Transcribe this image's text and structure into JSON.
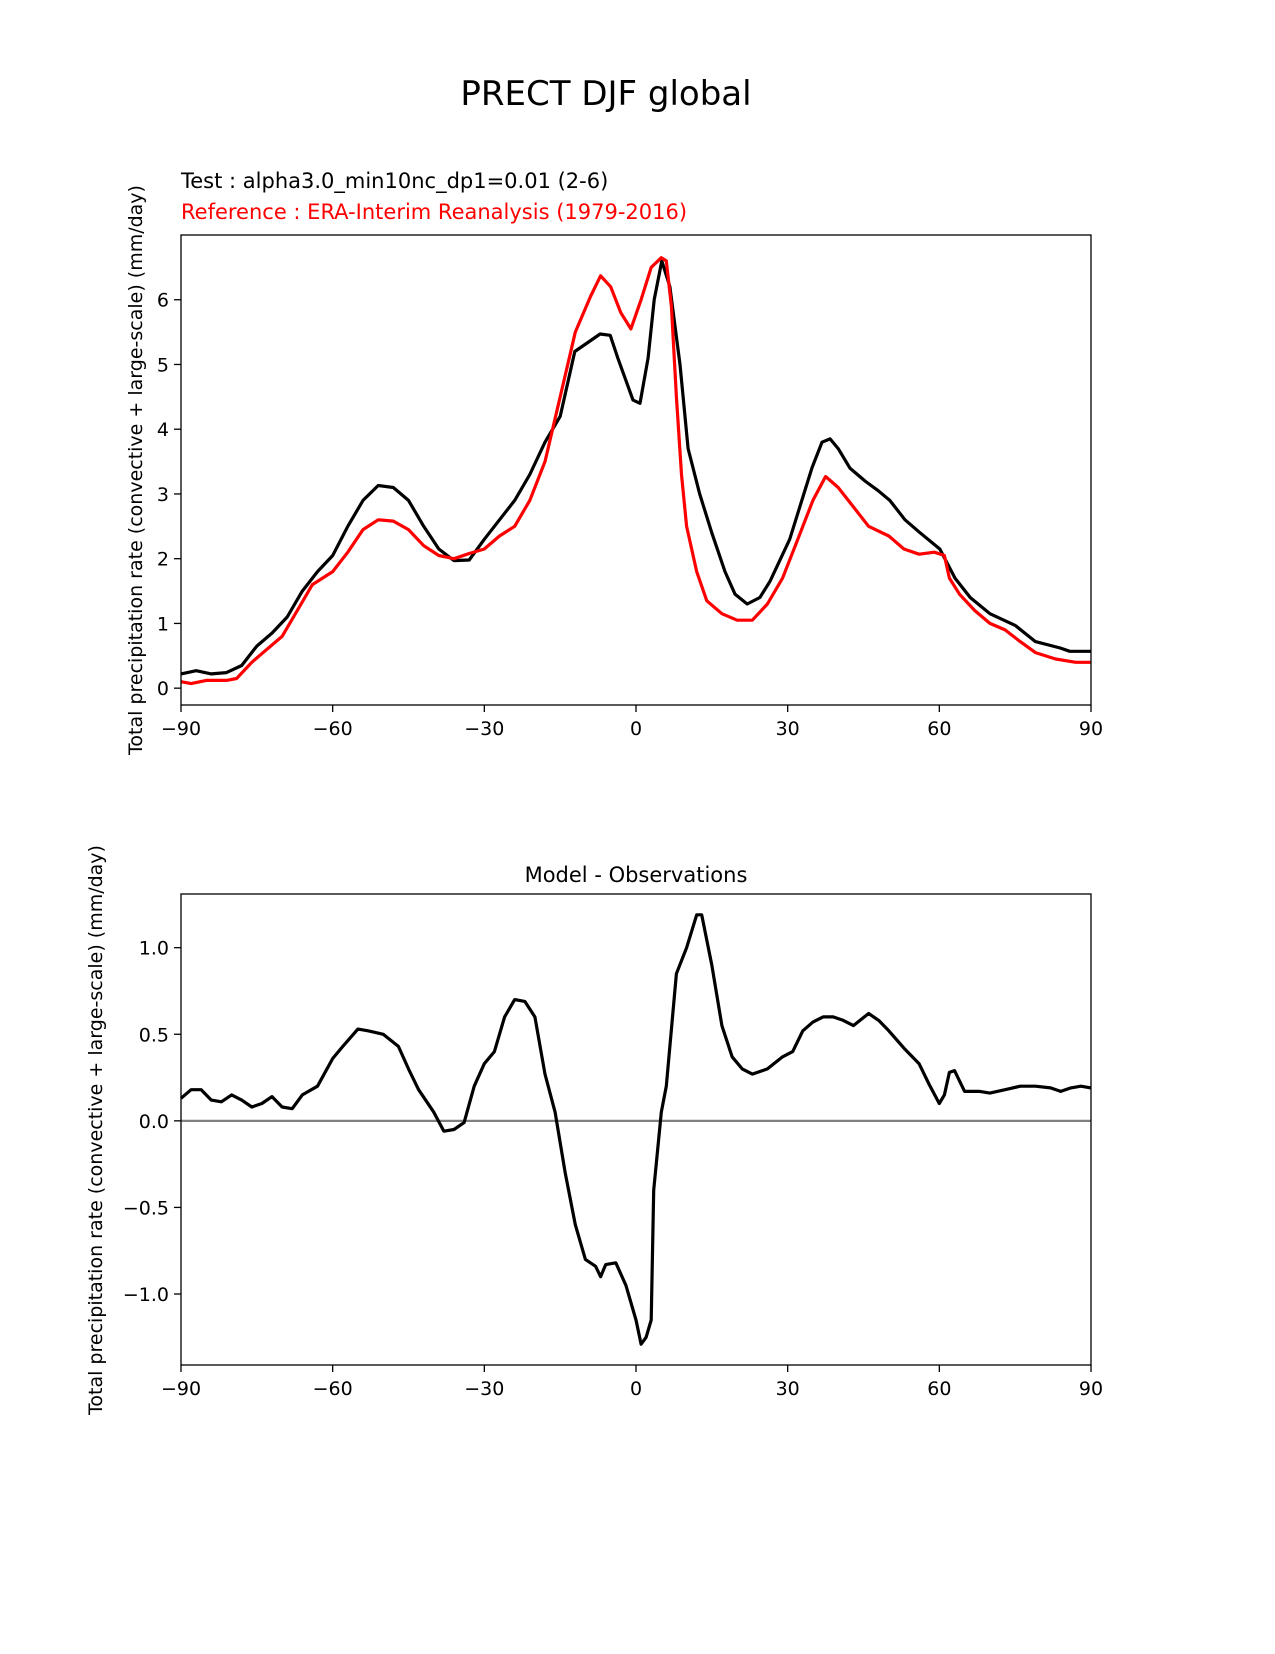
{
  "figure_title": "PRECT DJF global",
  "chart_data": [
    {
      "type": "line",
      "test_label": "Test : alpha3.0_min10nc_dp1=0.01 (2-6)",
      "reference_label": "Reference : ERA-Interim Reanalysis (1979-2016)",
      "xlabel": "",
      "ylabel": "Total precipitation rate (convective + large-scale) (mm/day)",
      "xlim": [
        -90,
        90
      ],
      "ylim": [
        -0.26,
        7.0
      ],
      "xticks": [
        -90,
        -60,
        -30,
        0,
        30,
        60,
        90
      ],
      "xtick_labels": [
        "−90",
        "−60",
        "−30",
        "0",
        "30",
        "60",
        "90"
      ],
      "yticks": [
        0,
        1,
        2,
        3,
        4,
        5,
        6
      ],
      "ytick_labels": [
        "0",
        "1",
        "2",
        "3",
        "4",
        "5",
        "6"
      ],
      "grid": false,
      "series": [
        {
          "name": "Test",
          "color": "#000000",
          "x": [
            -90,
            -87,
            -84,
            -81,
            -78,
            -75,
            -72,
            -69,
            -66,
            -63,
            -60,
            -57,
            -54,
            -51,
            -48,
            -45,
            -42,
            -39,
            -36,
            -33,
            -30,
            -27,
            -24,
            -21,
            -18,
            -15,
            -12.1,
            -7.1,
            -5.1,
            -3.6,
            -0.6,
            0.8,
            2.4,
            3.6,
            5.1,
            6.7,
            8.7,
            10.3,
            12.6,
            15,
            17.6,
            19.6,
            22,
            24.5,
            26.5,
            30.4,
            32.4,
            34.8,
            36.8,
            38.4,
            40,
            42.3,
            45.3,
            47.9,
            50.2,
            53.2,
            56.2,
            60.1,
            63.1,
            66.1,
            70,
            75,
            79,
            83.9,
            85.8,
            90
          ],
          "y": [
            0.22,
            0.27,
            0.22,
            0.24,
            0.35,
            0.65,
            0.85,
            1.1,
            1.5,
            1.8,
            2.05,
            2.5,
            2.9,
            3.13,
            3.1,
            2.9,
            2.5,
            2.15,
            1.97,
            1.98,
            2.3,
            2.6,
            2.9,
            3.3,
            3.8,
            4.2,
            5.2,
            5.47,
            5.45,
            5.1,
            4.45,
            4.4,
            5.1,
            6.0,
            6.6,
            6.2,
            5.0,
            3.7,
            3.0,
            2.4,
            1.8,
            1.45,
            1.3,
            1.4,
            1.65,
            2.3,
            2.8,
            3.4,
            3.8,
            3.85,
            3.7,
            3.4,
            3.2,
            3.05,
            2.9,
            2.6,
            2.4,
            2.15,
            1.7,
            1.4,
            1.15,
            0.97,
            0.72,
            0.62,
            0.57,
            0.57
          ]
        },
        {
          "name": "Reference",
          "color": "#ff0000",
          "x": [
            -90,
            -88,
            -85,
            -81,
            -79,
            -76,
            -73,
            -70,
            -67,
            -64,
            -60,
            -57,
            -54,
            -51,
            -48,
            -45,
            -42,
            -39,
            -36,
            -33,
            -30,
            -27,
            -24,
            -21,
            -18,
            -15,
            -12,
            -9,
            -7,
            -5,
            -3,
            -1,
            1,
            3,
            5,
            6,
            7,
            8,
            9,
            10,
            12,
            14,
            17,
            20,
            23,
            26,
            29,
            32,
            35,
            37.5,
            40,
            43,
            46,
            50,
            53,
            56,
            59,
            61,
            62,
            64,
            67,
            70,
            73,
            76,
            79,
            83,
            87,
            90
          ],
          "y": [
            0.1,
            0.07,
            0.12,
            0.12,
            0.15,
            0.4,
            0.6,
            0.8,
            1.2,
            1.6,
            1.8,
            2.1,
            2.45,
            2.6,
            2.58,
            2.45,
            2.2,
            2.05,
            2.0,
            2.08,
            2.15,
            2.35,
            2.5,
            2.9,
            3.5,
            4.5,
            5.5,
            6.05,
            6.37,
            6.2,
            5.8,
            5.55,
            6.0,
            6.5,
            6.65,
            6.6,
            5.9,
            4.5,
            3.3,
            2.5,
            1.8,
            1.35,
            1.15,
            1.05,
            1.05,
            1.3,
            1.7,
            2.3,
            2.9,
            3.27,
            3.1,
            2.8,
            2.5,
            2.35,
            2.15,
            2.07,
            2.1,
            2.05,
            1.7,
            1.45,
            1.2,
            1.0,
            0.9,
            0.72,
            0.55,
            0.45,
            0.4,
            0.4
          ]
        }
      ]
    },
    {
      "type": "line",
      "title": "Model - Observations",
      "xlabel": "",
      "ylabel": "Total precipitation rate (convective + large-scale) (mm/day)",
      "xlim": [
        -90,
        90
      ],
      "ylim": [
        -1.41,
        1.31
      ],
      "xticks": [
        -90,
        -60,
        -30,
        0,
        30,
        60,
        90
      ],
      "xtick_labels": [
        "−90",
        "−60",
        "−30",
        "0",
        "30",
        "60",
        "90"
      ],
      "yticks": [
        -1.0,
        -0.5,
        0.0,
        0.5,
        1.0
      ],
      "ytick_labels": [
        "−1.0",
        "−0.5",
        "0.0",
        "0.5",
        "1.0"
      ],
      "grid": false,
      "zero_line_color": "#808080",
      "series": [
        {
          "name": "Model - Observations",
          "color": "#000000",
          "x": [
            -90,
            -88,
            -86,
            -84,
            -82,
            -80,
            -78,
            -76,
            -74,
            -72,
            -70,
            -68,
            -66,
            -63,
            -60,
            -58,
            -55,
            -53,
            -50,
            -47,
            -45,
            -43,
            -40,
            -38,
            -36,
            -34,
            -32,
            -30,
            -28,
            -26,
            -24,
            -22,
            -20,
            -18,
            -16,
            -14,
            -12,
            -10,
            -8,
            -7,
            -6,
            -4,
            -2,
            0,
            1,
            2,
            3,
            3.5,
            5,
            6,
            8,
            10,
            12,
            13,
            15,
            17,
            19,
            21,
            23,
            26,
            29,
            31,
            33,
            35,
            37,
            39,
            41,
            43,
            46,
            48,
            50,
            53,
            56,
            58,
            60,
            61,
            62,
            63,
            65,
            68,
            70,
            73,
            76,
            79,
            82,
            84,
            86,
            88,
            90
          ],
          "y": [
            0.13,
            0.18,
            0.18,
            0.12,
            0.11,
            0.15,
            0.12,
            0.08,
            0.1,
            0.14,
            0.08,
            0.07,
            0.15,
            0.2,
            0.36,
            0.43,
            0.53,
            0.52,
            0.5,
            0.43,
            0.3,
            0.18,
            0.05,
            -0.06,
            -0.05,
            -0.01,
            0.2,
            0.33,
            0.4,
            0.6,
            0.7,
            0.69,
            0.6,
            0.27,
            0.05,
            -0.3,
            -0.6,
            -0.8,
            -0.84,
            -0.9,
            -0.83,
            -0.82,
            -0.95,
            -1.15,
            -1.29,
            -1.25,
            -1.15,
            -0.4,
            0.05,
            0.2,
            0.85,
            1.0,
            1.19,
            1.19,
            0.9,
            0.55,
            0.37,
            0.3,
            0.27,
            0.3,
            0.37,
            0.4,
            0.52,
            0.57,
            0.6,
            0.6,
            0.58,
            0.55,
            0.62,
            0.58,
            0.52,
            0.42,
            0.33,
            0.21,
            0.1,
            0.15,
            0.28,
            0.29,
            0.17,
            0.17,
            0.16,
            0.18,
            0.2,
            0.2,
            0.19,
            0.17,
            0.19,
            0.2,
            0.19
          ]
        }
      ]
    }
  ]
}
